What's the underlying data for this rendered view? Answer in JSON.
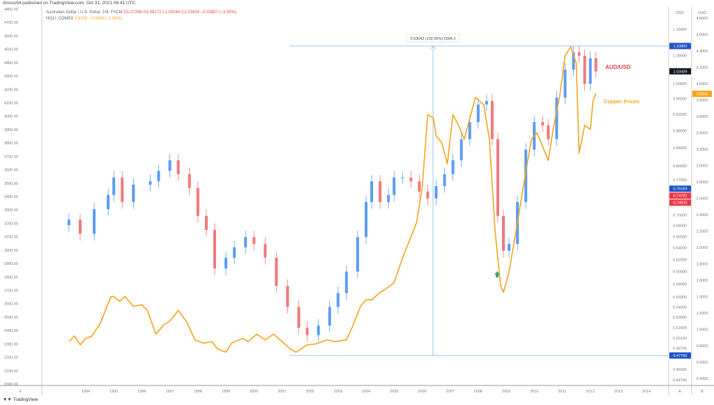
{
  "header": {
    "published": "dmoss94 published on TradingView.com, Oct 31, 2021 06:41 UTC",
    "series1_name": "Australian Dollar / U.S. Dollar, 1M, FXCM",
    "series1_ohlc": "O1.07296 H1.08172 L1.03044 C1.03439 −0.03857 (−3.59%)",
    "series2_name": "HG1!, COMEX",
    "series2_quote": "3.8250 −0.0545 (−1.40%)"
  },
  "footer": {
    "brand": "TradingView"
  },
  "colors": {
    "up": "#5b9cf6",
    "down": "#f0787c",
    "copper": "#f7a21b",
    "measure": "#9ec3e6",
    "blue_label": "#1e53c5",
    "red_label": "#f23645"
  },
  "annotations": {
    "aud_label": "AUD/USD",
    "copper_label": "Copper Prices",
    "measure_label": "0.63042 (132.00%) 6304.2"
  },
  "chart_data": {
    "type": "candlestick+line",
    "title": "",
    "x_ticks": [
      "1994",
      "1995",
      "1996",
      "1997",
      "1998",
      "1999",
      "2000",
      "2001",
      "2002",
      "2003",
      "2004",
      "2005",
      "2006",
      "2007",
      "2008",
      "2009",
      "2010",
      "2011",
      "2012",
      "2013",
      "2014"
    ],
    "left_axis": {
      "ticks": [
        "4800.00",
        "4700.00",
        "4600.00",
        "4500.00",
        "4400.00",
        "4300.00",
        "4200.00",
        "4100.00",
        "4000.00",
        "3900.00",
        "3800.00",
        "3700.00",
        "3600.00",
        "3500.00",
        "3400.00",
        "3300.00",
        "3200.00",
        "3100.00",
        "3000.00",
        "2900.00",
        "2800.00",
        "2700.00",
        "2600.00",
        "2500.00",
        "2400.00",
        "2300.00",
        "2200.00",
        "2100.00",
        "2000.00"
      ],
      "range": [
        2000,
        4800
      ]
    },
    "axis_a": {
      "title": "USD",
      "name": "A",
      "scale": "log",
      "ticks": [
        "1.16000",
        "1.08000",
        "1.00000",
        "0.96000",
        "0.92000",
        "0.88000",
        "0.84000",
        "0.80000",
        "0.77000",
        "0.70000",
        "0.68000",
        "0.66000",
        "0.64000",
        "0.62000",
        "0.60000",
        "0.58000",
        "0.56000",
        "0.54500",
        "0.53000",
        "0.51500",
        "0.50100",
        "0.48700",
        "0.46000",
        "0.44700"
      ],
      "price_labels": [
        {
          "value": "1.10802",
          "color": "#1e53c5"
        },
        {
          "value": "1.03439",
          "color": "#131722"
        },
        {
          "value": "0.75169",
          "color": "#1e53c5"
        },
        {
          "value": "0.74782",
          "color": "#f23645"
        },
        {
          "value": "0.74500",
          "color": "#f23645"
        },
        {
          "value": "0.47760",
          "color": "#1e53c5"
        }
      ]
    },
    "axis_b": {
      "title": "USD",
      "name": "B",
      "scale": "linear",
      "range": [
        0.4,
        4.8
      ],
      "ticks": [
        "4.8000",
        "4.6000",
        "4.4000",
        "4.2000",
        "4.0000",
        "3.8000",
        "3.6000",
        "3.4000",
        "3.2000",
        "3.0000",
        "2.8000",
        "2.6000",
        "2.4000",
        "2.2000",
        "2.0000",
        "1.8000",
        "1.6000",
        "1.4000",
        "1.2000",
        "1.0000",
        "0.8000",
        "0.6000",
        "0.4000"
      ],
      "price_labels": [
        {
          "value": "3.8250",
          "color": "#f7a21b"
        }
      ]
    },
    "aud_usd": {
      "axis": "A",
      "x": [
        1993.4,
        1993.8,
        1994.3,
        1994.8,
        1995.0,
        1995.3,
        1995.7,
        1996.3,
        1996.6,
        1997.0,
        1997.3,
        1997.7,
        1998.0,
        1998.3,
        1998.6,
        1999.0,
        1999.3,
        1999.7,
        2000.0,
        2000.4,
        2000.8,
        2001.2,
        2001.6,
        2001.9,
        2002.3,
        2002.7,
        2003.0,
        2003.3,
        2003.7,
        2004.0,
        2004.2,
        2004.5,
        2004.8,
        2005.0,
        2005.3,
        2005.6,
        2005.9,
        2006.2,
        2006.5,
        2006.8,
        2007.1,
        2007.4,
        2007.7,
        2008.0,
        2008.3,
        2008.5,
        2008.7,
        2008.9,
        2009.1,
        2009.4,
        2009.7,
        2010.0,
        2010.3,
        2010.5,
        2010.8,
        2011.1,
        2011.4,
        2011.6,
        2011.8,
        2012.0,
        2012.2
      ],
      "close": [
        0.691,
        0.665,
        0.711,
        0.739,
        0.775,
        0.725,
        0.76,
        0.767,
        0.789,
        0.812,
        0.782,
        0.753,
        0.698,
        0.672,
        0.605,
        0.623,
        0.641,
        0.659,
        0.647,
        0.623,
        0.577,
        0.545,
        0.515,
        0.505,
        0.518,
        0.545,
        0.566,
        0.6,
        0.659,
        0.725,
        0.767,
        0.725,
        0.739,
        0.775,
        0.775,
        0.767,
        0.746,
        0.732,
        0.757,
        0.782,
        0.812,
        0.86,
        0.901,
        0.945,
        0.954,
        0.86,
        0.698,
        0.635,
        0.647,
        0.725,
        0.836,
        0.901,
        0.893,
        0.86,
        0.963,
        1.039,
        1.089,
        1.079,
        1.0,
        1.072,
        1.034
      ]
    },
    "copper": {
      "axis": "B",
      "x": [
        1993.4,
        1993.6,
        1993.8,
        1994.0,
        1994.2,
        1994.5,
        1994.7,
        1994.9,
        1995.0,
        1995.2,
        1995.4,
        1995.7,
        1996.0,
        1996.2,
        1996.5,
        1996.8,
        1997.0,
        1997.3,
        1997.6,
        1997.9,
        1998.2,
        1998.5,
        1998.7,
        1999.0,
        1999.2,
        1999.6,
        1999.8,
        2000.1,
        2000.4,
        2000.7,
        2001.0,
        2001.3,
        2001.5,
        2001.9,
        2002.2,
        2002.6,
        2002.9,
        2003.3,
        2003.5,
        2003.8,
        2004.0,
        2004.2,
        2004.5,
        2004.7,
        2005.0,
        2005.3,
        2005.5,
        2005.8,
        2006.0,
        2006.2,
        2006.4,
        2006.5,
        2006.7,
        2006.9,
        2007.1,
        2007.3,
        2007.5,
        2007.7,
        2007.9,
        2008.2,
        2008.4,
        2008.6,
        2008.8,
        2008.9,
        2009.1,
        2009.4,
        2009.6,
        2009.9,
        2010.1,
        2010.3,
        2010.5,
        2010.7,
        2010.9,
        2011.1,
        2011.3,
        2011.5,
        2011.6,
        2011.8,
        2012.0,
        2012.1,
        2012.2
      ],
      "values": [
        0.8,
        0.87,
        0.76,
        0.84,
        0.86,
        1.01,
        1.18,
        1.35,
        1.35,
        1.29,
        1.35,
        1.23,
        1.25,
        1.18,
        0.89,
        1.01,
        1.05,
        1.18,
        1.04,
        0.82,
        0.78,
        0.8,
        0.71,
        0.67,
        0.78,
        0.84,
        0.8,
        0.89,
        0.82,
        0.89,
        0.8,
        0.71,
        0.67,
        0.76,
        0.77,
        0.82,
        0.8,
        0.82,
        0.97,
        1.23,
        1.31,
        1.31,
        1.4,
        1.44,
        1.52,
        1.82,
        1.99,
        2.25,
        2.67,
        3.57,
        3.53,
        3.31,
        3.23,
        2.97,
        3.57,
        3.44,
        3.27,
        3.52,
        3.78,
        3.69,
        3.27,
        2.16,
        1.48,
        1.4,
        1.65,
        2.25,
        2.67,
        3.27,
        3.35,
        3.18,
        3.01,
        3.44,
        3.78,
        4.29,
        4.4,
        4.2,
        3.1,
        3.44,
        3.39,
        3.74,
        3.825
      ]
    },
    "measure": {
      "from": 0.4776,
      "to": 1.10802,
      "change": "0.63042",
      "percent": "132.00%"
    }
  }
}
